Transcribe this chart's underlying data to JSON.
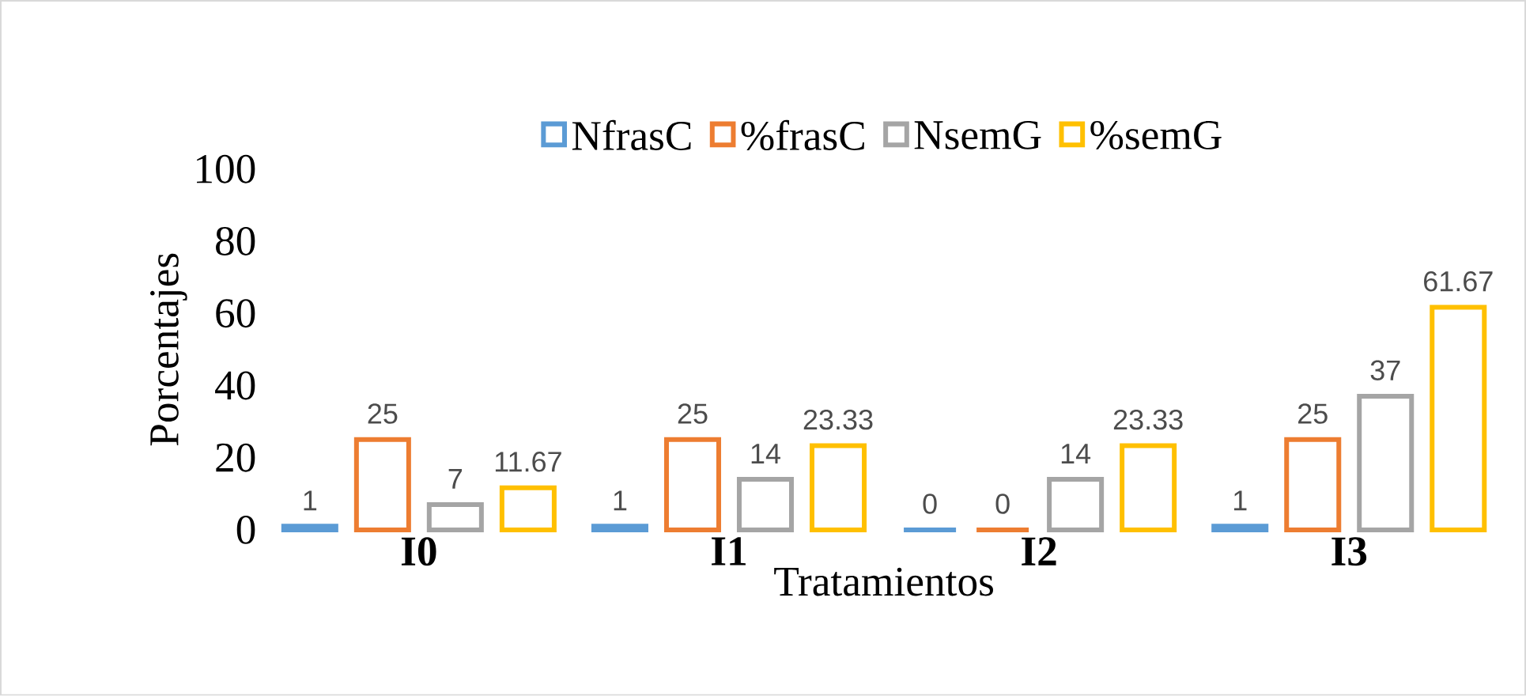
{
  "chart_data": {
    "type": "bar",
    "xlabel": "Tratamientos",
    "ylabel": "Porcentajes",
    "categories": [
      "I0",
      "I1",
      "I2",
      "I3"
    ],
    "series": [
      {
        "name": "NfrasC",
        "color": "#5b9bd5",
        "values": [
          1,
          1,
          0,
          1
        ]
      },
      {
        "name": "%frasC",
        "color": "#ed7d31",
        "values": [
          25,
          25,
          0,
          25
        ]
      },
      {
        "name": "NsemG",
        "color": "#a5a5a5",
        "values": [
          7,
          14,
          14,
          37
        ]
      },
      {
        "name": "%semG",
        "color": "#ffc000",
        "values": [
          11.67,
          23.33,
          23.33,
          61.67
        ]
      }
    ],
    "ylim": [
      0,
      100
    ],
    "yticks": [
      0,
      20,
      40,
      60,
      80,
      100
    ],
    "data_labels": true,
    "legend": "top",
    "grid": false
  }
}
